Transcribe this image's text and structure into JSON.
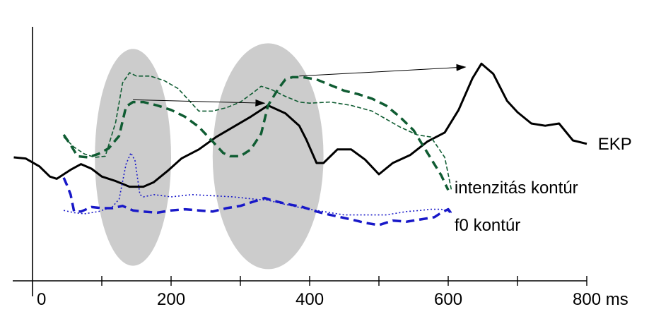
{
  "chart_data": {
    "type": "line",
    "title": "",
    "xlabel": "",
    "ylabel": "",
    "x_unit": "ms",
    "xlim": [
      -27,
      800
    ],
    "ylim": [
      -1.5,
      1.2
    ],
    "xticks": [
      0,
      200,
      400,
      600,
      800
    ],
    "tick_labels": [
      "0",
      "200",
      "400",
      "600",
      "800 ms"
    ],
    "grid": false,
    "colors": {
      "ekp": "#000000",
      "intensity": "#0f5c32",
      "f0": "#1818c8",
      "highlight": "#cccccc"
    },
    "highlights": [
      {
        "name": "window-1",
        "x_center": 145,
        "x_half_width": 55,
        "y_center": 0,
        "y_half_height": 0.96
      },
      {
        "name": "window-2",
        "x_center": 340,
        "x_half_width": 80,
        "y_center": 0.01,
        "y_half_height": 1.0
      }
    ],
    "series": [
      {
        "name": "EKP",
        "label": "EKP",
        "style": "solid",
        "width": 3,
        "color": "#000000",
        "x": [
          -27,
          -10,
          10,
          25,
          35,
          55,
          70,
          85,
          100,
          120,
          140,
          160,
          175,
          195,
          215,
          240,
          265,
          290,
          315,
          340,
          365,
          385,
          395,
          410,
          420,
          440,
          460,
          480,
          500,
          520,
          545,
          570,
          595,
          615,
          635,
          648,
          665,
          685,
          700,
          720,
          740,
          760,
          780,
          800
        ],
        "y": [
          0,
          -0.01,
          -0.08,
          -0.17,
          -0.19,
          -0.11,
          -0.06,
          -0.1,
          -0.17,
          -0.21,
          -0.26,
          -0.26,
          -0.22,
          -0.12,
          -0.01,
          0.07,
          0.18,
          0.27,
          0.36,
          0.46,
          0.39,
          0.28,
          0.16,
          -0.05,
          -0.05,
          0.07,
          0.07,
          -0.02,
          -0.15,
          -0.05,
          0.02,
          0.14,
          0.22,
          0.42,
          0.7,
          0.83,
          0.74,
          0.5,
          0.4,
          0.3,
          0.28,
          0.3,
          0.15,
          0.12
        ]
      },
      {
        "name": "intenzitás kontúr (vastag)",
        "label": "intenzitás kontúr",
        "style": "dashed-thick",
        "width": 3.5,
        "color": "#0f5c32",
        "x": [
          45,
          55,
          65,
          80,
          95,
          110,
          125,
          135,
          145,
          160,
          180,
          200,
          220,
          240,
          260,
          275,
          285,
          300,
          315,
          330,
          340,
          355,
          365,
          375,
          390,
          410,
          430,
          450,
          470,
          490,
          510,
          530,
          550,
          570,
          590,
          600
        ],
        "y": [
          0.2,
          0.11,
          0.01,
          0.0,
          0.03,
          0.08,
          0.19,
          0.45,
          0.49,
          0.49,
          0.46,
          0.42,
          0.36,
          0.27,
          0.14,
          0.04,
          0.01,
          0.01,
          0.07,
          0.21,
          0.46,
          0.61,
          0.69,
          0.71,
          0.71,
          0.69,
          0.64,
          0.59,
          0.56,
          0.52,
          0.46,
          0.36,
          0.24,
          0.04,
          -0.16,
          -0.29
        ]
      },
      {
        "name": "intenzitás kontúr (vékony)",
        "label": "",
        "style": "dashed-thin",
        "width": 1.6,
        "color": "#0f5c32",
        "x": [
          45,
          60,
          75,
          90,
          105,
          120,
          130,
          140,
          150,
          170,
          190,
          210,
          225,
          240,
          260,
          280,
          300,
          320,
          330,
          345,
          365,
          385,
          400,
          430,
          460,
          490,
          510,
          530,
          555,
          575,
          595,
          605
        ],
        "y": [
          0.18,
          0.09,
          0.03,
          0.0,
          0.01,
          0.31,
          0.66,
          0.75,
          0.72,
          0.72,
          0.68,
          0.61,
          0.51,
          0.41,
          0.41,
          0.44,
          0.49,
          0.58,
          0.63,
          0.6,
          0.54,
          0.49,
          0.48,
          0.49,
          0.46,
          0.41,
          0.34,
          0.27,
          0.2,
          0.18,
          0.0,
          -0.3
        ]
      },
      {
        "name": "f0 kontúr (vastag)",
        "label": "f0 kontúr",
        "style": "dashed-thick",
        "width": 3.5,
        "color": "#1818c8",
        "x": [
          45,
          50,
          55,
          60,
          70,
          85,
          100,
          115,
          130,
          145,
          160,
          180,
          200,
          220,
          240,
          260,
          280,
          300,
          320,
          335,
          345,
          365,
          390,
          410,
          430,
          460,
          480,
          500,
          520,
          540,
          560,
          580,
          590,
          600,
          605
        ],
        "y": [
          -0.18,
          -0.25,
          -0.33,
          -0.48,
          -0.48,
          -0.44,
          -0.45,
          -0.45,
          -0.43,
          -0.47,
          -0.48,
          -0.49,
          -0.47,
          -0.46,
          -0.47,
          -0.48,
          -0.45,
          -0.43,
          -0.39,
          -0.36,
          -0.38,
          -0.41,
          -0.44,
          -0.48,
          -0.51,
          -0.55,
          -0.58,
          -0.6,
          -0.56,
          -0.57,
          -0.55,
          -0.53,
          -0.49,
          -0.46,
          -0.5
        ]
      },
      {
        "name": "f0 kontúr (vékony)",
        "label": "",
        "style": "dotted",
        "width": 1.6,
        "color": "#1818c8",
        "x": [
          45,
          60,
          75,
          95,
          115,
          125,
          135,
          142,
          148,
          155,
          160,
          175,
          200,
          230,
          260,
          290,
          320,
          340,
          360,
          390,
          420,
          450,
          480,
          510,
          540,
          560,
          575,
          590,
          605
        ],
        "y": [
          -0.47,
          -0.49,
          -0.5,
          -0.48,
          -0.44,
          -0.37,
          -0.06,
          0.04,
          -0.03,
          -0.33,
          -0.35,
          -0.33,
          -0.35,
          -0.33,
          -0.34,
          -0.35,
          -0.37,
          -0.38,
          -0.41,
          -0.45,
          -0.48,
          -0.51,
          -0.51,
          -0.51,
          -0.48,
          -0.47,
          -0.46,
          -0.46,
          -0.49
        ]
      }
    ],
    "annotations": [
      {
        "type": "arrow",
        "from": [
          145,
          0.51
        ],
        "to": [
          335,
          0.48
        ]
      },
      {
        "type": "arrow",
        "from": [
          385,
          0.72
        ],
        "to": [
          625,
          0.8
        ]
      }
    ],
    "series_labels": [
      {
        "text": "EKP",
        "x": 812,
        "y": 0.12
      },
      {
        "text": "intenzitás kontúr",
        "x": 605,
        "y": -0.27
      },
      {
        "text": "f0 kontúr",
        "x": 605,
        "y": -0.6
      }
    ]
  }
}
